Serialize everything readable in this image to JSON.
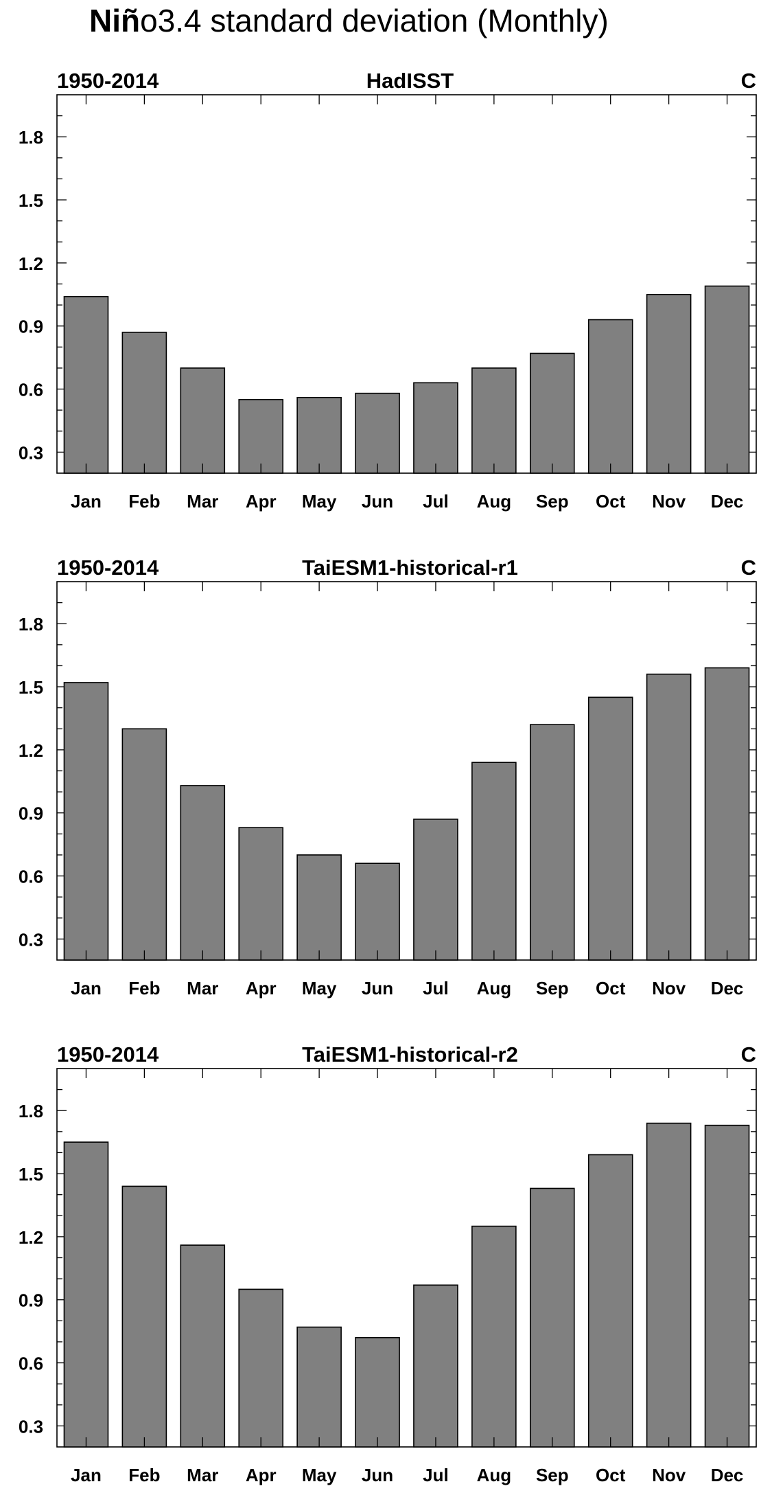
{
  "figure": {
    "title_bold": "Niñ",
    "title_rest": "o3.4 standard deviation (Monthly)"
  },
  "chart_data": [
    {
      "type": "bar",
      "left_label": "1950-2014",
      "title": "HadISST",
      "right_label": "C",
      "categories": [
        "Jan",
        "Feb",
        "Mar",
        "Apr",
        "May",
        "Jun",
        "Jul",
        "Aug",
        "Sep",
        "Oct",
        "Nov",
        "Dec"
      ],
      "values": [
        1.04,
        0.87,
        0.7,
        0.55,
        0.56,
        0.58,
        0.63,
        0.7,
        0.77,
        0.93,
        1.05,
        1.09
      ],
      "ylim": [
        0.2,
        2.0
      ],
      "yticks": [
        "0.3",
        "0.6",
        "0.9",
        "1.2",
        "1.5",
        "1.8"
      ],
      "bar_color": "#808080"
    },
    {
      "type": "bar",
      "left_label": "1950-2014",
      "title": "TaiESM1-historical-r1",
      "right_label": "C",
      "categories": [
        "Jan",
        "Feb",
        "Mar",
        "Apr",
        "May",
        "Jun",
        "Jul",
        "Aug",
        "Sep",
        "Oct",
        "Nov",
        "Dec"
      ],
      "values": [
        1.52,
        1.3,
        1.03,
        0.83,
        0.7,
        0.66,
        0.87,
        1.14,
        1.32,
        1.45,
        1.56,
        1.59
      ],
      "ylim": [
        0.2,
        2.0
      ],
      "yticks": [
        "0.3",
        "0.6",
        "0.9",
        "1.2",
        "1.5",
        "1.8"
      ],
      "bar_color": "#808080"
    },
    {
      "type": "bar",
      "left_label": "1950-2014",
      "title": "TaiESM1-historical-r2",
      "right_label": "C",
      "categories": [
        "Jan",
        "Feb",
        "Mar",
        "Apr",
        "May",
        "Jun",
        "Jul",
        "Aug",
        "Sep",
        "Oct",
        "Nov",
        "Dec"
      ],
      "values": [
        1.65,
        1.44,
        1.16,
        0.95,
        0.77,
        0.72,
        0.97,
        1.25,
        1.43,
        1.59,
        1.74,
        1.73
      ],
      "ylim": [
        0.2,
        2.0
      ],
      "yticks": [
        "0.3",
        "0.6",
        "0.9",
        "1.2",
        "1.5",
        "1.8"
      ],
      "bar_color": "#808080"
    }
  ]
}
